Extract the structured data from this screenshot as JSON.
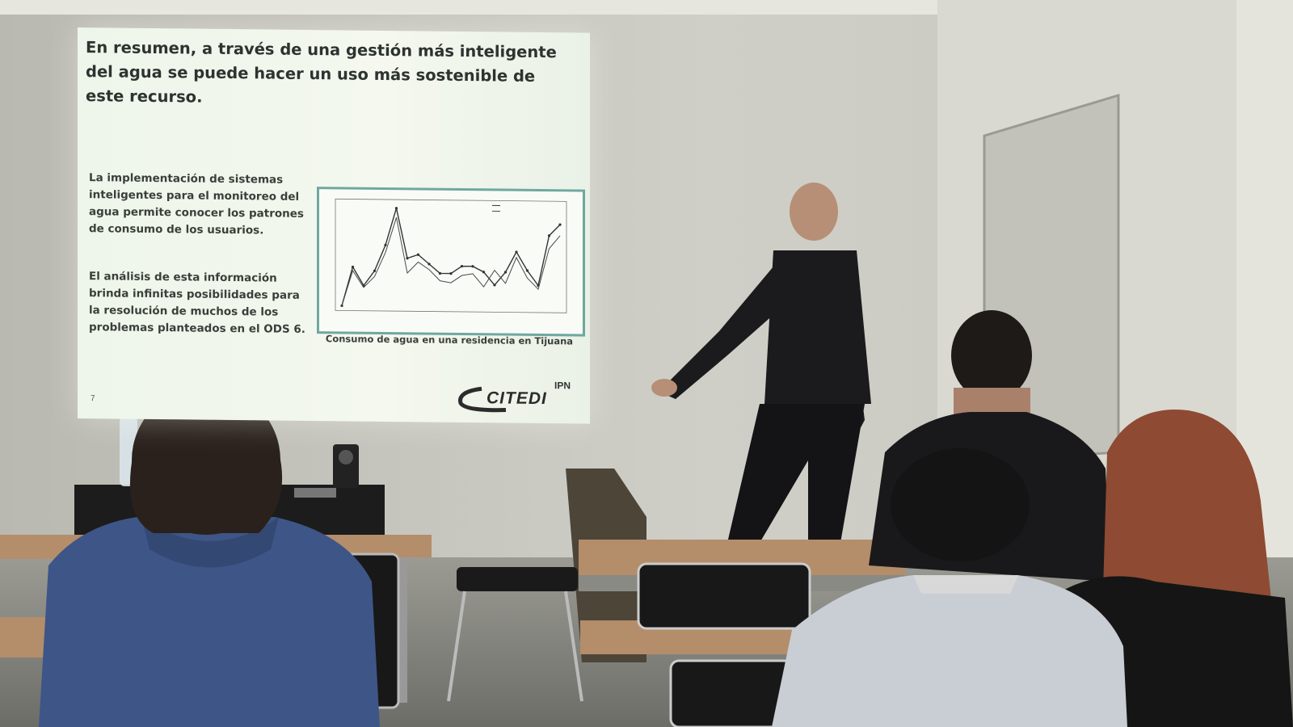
{
  "slide": {
    "title": "En resumen, a través de una gestión más inteligente del agua se puede hacer un uso más sostenible de este recurso.",
    "bullet_1": "La implementación de sistemas inteligentes para el monitoreo del agua permite conocer los patrones de consumo de los usuarios.",
    "bullet_2": "El análisis de esta información brinda infinitas posibilidades para la resolución de muchos de los problemas planteados en el ODS 6.",
    "caption": "Consumo de agua en una residencia en Tijuana",
    "page_number": "7",
    "logo": {
      "name": "CITEDI",
      "institution": "IPN"
    }
  },
  "chart_data": {
    "type": "line",
    "series": [
      {
        "values": [
          0,
          2.1,
          1.1,
          1.9,
          3.3,
          5.3,
          2.6,
          2.8,
          2.3,
          1.8,
          1.8,
          2.2,
          2.2,
          1.9,
          1.2,
          1.9,
          3.0,
          2.0,
          1.2,
          3.9,
          4.5
        ]
      },
      {
        "values": [
          0,
          1.9,
          1.0,
          1.6,
          2.9,
          4.8,
          1.8,
          2.4,
          2.0,
          1.4,
          1.3,
          1.7,
          1.8,
          1.1,
          2.0,
          1.3,
          2.7,
          1.6,
          1.0,
          3.2,
          3.9
        ]
      }
    ],
    "ylim": [
      0,
      5.5
    ],
    "grid": false,
    "legend": "top-right",
    "colors": [
      "#333333",
      "#4a4a4a"
    ]
  },
  "colors": {
    "slide_background": "#f1f6ec",
    "chart_border": "#6fa8a0",
    "wall": "#c4c4bc"
  }
}
